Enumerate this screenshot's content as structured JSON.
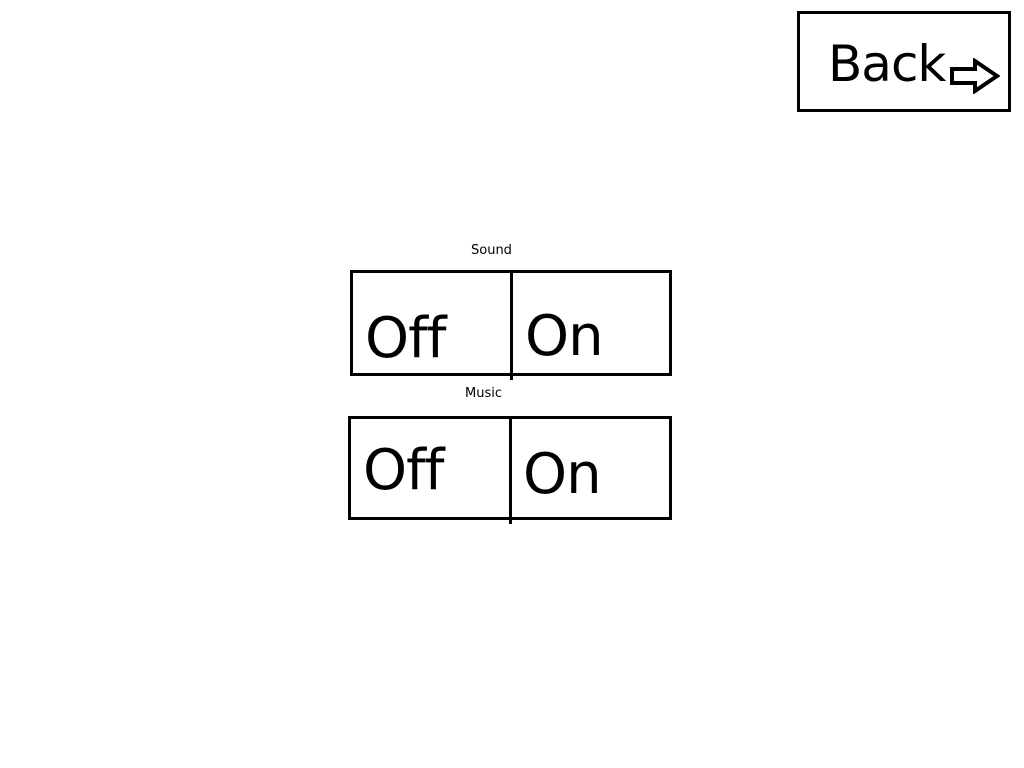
{
  "header": {
    "back_label": "Back",
    "back_icon": "arrow-right-icon"
  },
  "settings": {
    "sound": {
      "label": "Sound",
      "off_label": "Off",
      "on_label": "On"
    },
    "music": {
      "label": "Music",
      "off_label": "Off",
      "on_label": "On"
    }
  },
  "colors": {
    "background": "#ffffff",
    "foreground": "#000000"
  }
}
